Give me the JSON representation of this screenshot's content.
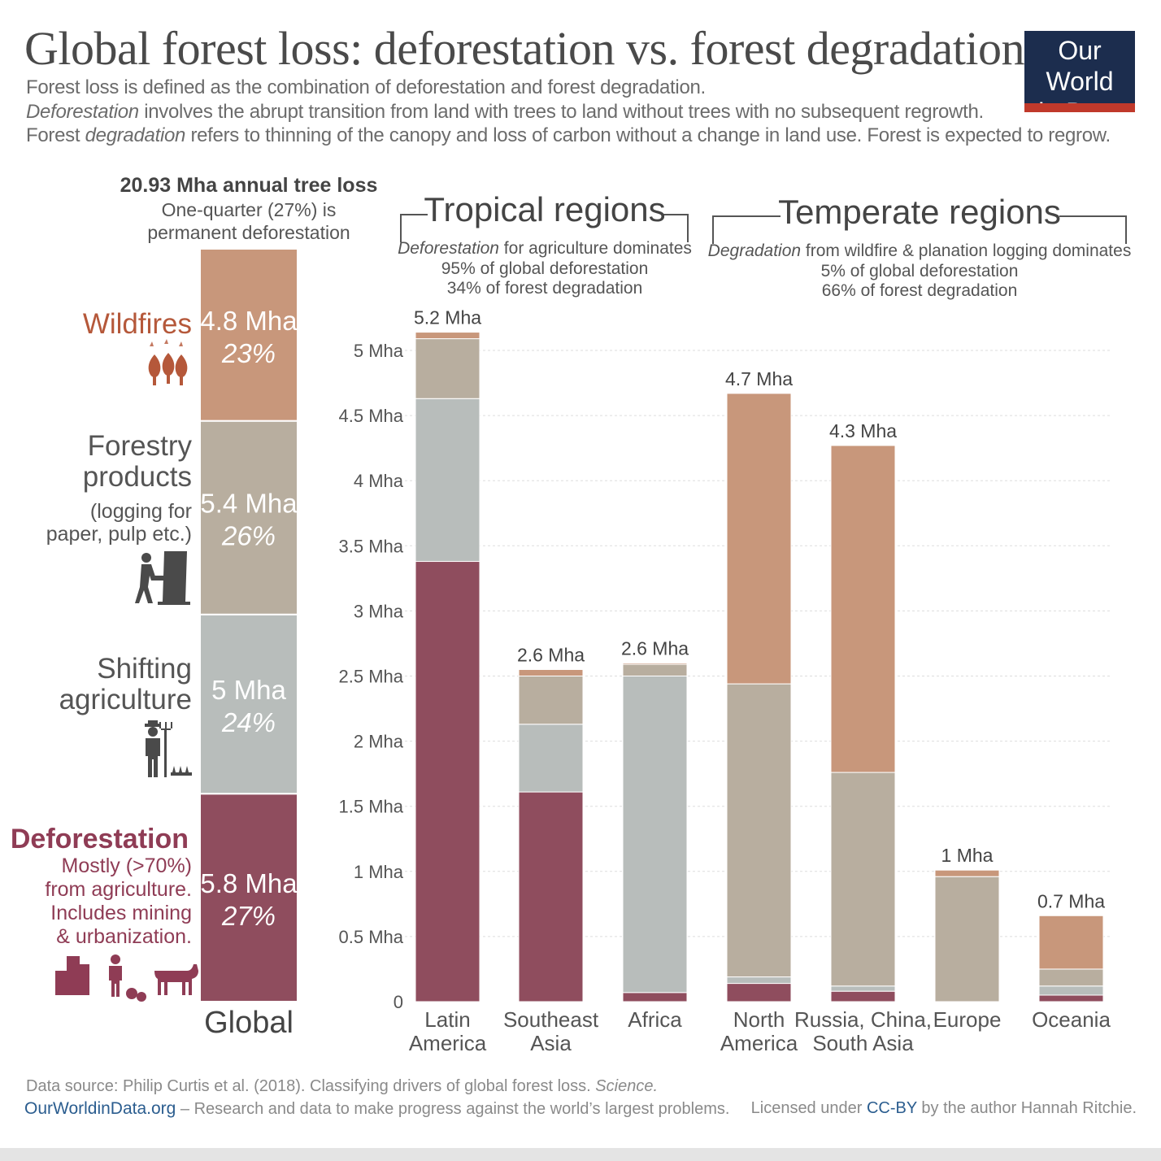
{
  "title": "Global forest loss: deforestation vs. forest degradation",
  "subtitle": {
    "line1": "Forest loss is defined as the combination of deforestation and forest degradation.",
    "line2_em": "Deforestation",
    "line2_rest": " involves the abrupt transition from land with trees to land without trees with no subsequent regrowth.",
    "line3_pre": "Forest ",
    "line3_em": "degradation",
    "line3_rest": " refers to thinning of the canopy and loss of carbon without  a change in land use. Forest is expected to regrow."
  },
  "logo": {
    "line1": "Our World",
    "line2": "in Data"
  },
  "colors": {
    "wildfires": "#c8977b",
    "forestry": "#b8ae9f",
    "shifting": "#b8bdbb",
    "deforestation": "#8f4d5e",
    "wildfire_text": "#b5583a",
    "deforestation_text": "#8f3c55",
    "label_gray": "#555555",
    "grid": "#dddddd"
  },
  "global_panel": {
    "heading_bold": "20.93 Mha annual tree loss",
    "heading_line2": "One-quarter (27%) is",
    "heading_line3": "permanent deforestation",
    "x_label": "Global",
    "segments": [
      {
        "key": "deforestation",
        "value": 5.8,
        "value_label": "5.8 Mha",
        "pct_label": "27%",
        "label_title": "Deforestation",
        "label_lines": [
          "Mostly (>70%)",
          "from agriculture.",
          "Includes mining",
          "& urbanization."
        ],
        "icon": "city-farmer-cow-icon"
      },
      {
        "key": "shifting",
        "value": 5.0,
        "value_label": "5 Mha",
        "pct_label": "24%",
        "label_title_lines": [
          "Shifting",
          "agriculture"
        ],
        "icon": "farmer-pitchfork-icon"
      },
      {
        "key": "forestry",
        "value": 5.4,
        "value_label": "5.4 Mha",
        "pct_label": "26%",
        "label_title_lines": [
          "Forestry",
          "products"
        ],
        "label_lines": [
          "(logging for",
          "paper, pulp etc.)"
        ],
        "icon": "lumberjack-chainsaw-icon"
      },
      {
        "key": "wildfires",
        "value": 4.8,
        "value_label": "4.8 Mha",
        "pct_label": "23%",
        "label_title": "Wildfires",
        "icon": "burning-trees-icon"
      }
    ]
  },
  "tropical_header": {
    "title": "Tropical regions",
    "line1_em": "Deforestation",
    "line1_rest": " for agriculture dominates",
    "line2": "95% of global deforestation",
    "line3": "34% of forest degradation"
  },
  "temperate_header": {
    "title": "Temperate regions",
    "line1_em": "Degradation",
    "line1_rest": " from wildfire & planation logging dominates",
    "line2": "5% of global deforestation",
    "line3": "66% of forest degradation"
  },
  "chart_data": {
    "type": "bar",
    "stacked": true,
    "categories": [
      [
        "Latin",
        "America"
      ],
      [
        "Southeast",
        "Asia"
      ],
      [
        "Africa"
      ],
      [
        "North",
        "America"
      ],
      [
        "Russia, China,",
        "South Asia"
      ],
      [
        "Europe"
      ],
      [
        "Oceania"
      ]
    ],
    "series": [
      {
        "key": "deforestation",
        "values": [
          3.38,
          1.61,
          0.07,
          0.14,
          0.08,
          0.0,
          0.05
        ]
      },
      {
        "key": "shifting",
        "values": [
          1.25,
          0.52,
          2.43,
          0.05,
          0.04,
          0.0,
          0.07
        ]
      },
      {
        "key": "forestry",
        "values": [
          0.46,
          0.37,
          0.09,
          2.25,
          1.64,
          0.96,
          0.13
        ]
      },
      {
        "key": "wildfires",
        "values": [
          0.05,
          0.05,
          0.01,
          2.23,
          2.51,
          0.05,
          0.41
        ]
      }
    ],
    "totals_labels": [
      "5.2 Mha",
      "2.6 Mha",
      "2.6 Mha",
      "4.7 Mha",
      "4.3 Mha",
      "1 Mha",
      "0.7 Mha"
    ],
    "yticks": [
      {
        "value": 0,
        "label": "0"
      },
      {
        "value": 0.5,
        "label": "0.5 Mha"
      },
      {
        "value": 1,
        "label": "1 Mha"
      },
      {
        "value": 1.5,
        "label": "1.5 Mha"
      },
      {
        "value": 2,
        "label": "2 Mha"
      },
      {
        "value": 2.5,
        "label": "2.5 Mha"
      },
      {
        "value": 3,
        "label": "3 Mha"
      },
      {
        "value": 3.5,
        "label": "3.5 Mha"
      },
      {
        "value": 4,
        "label": "4 Mha"
      },
      {
        "value": 4.5,
        "label": "4.5 Mha"
      },
      {
        "value": 5,
        "label": "5 Mha"
      }
    ],
    "ylim": [
      0,
      5.2
    ],
    "grid": true
  },
  "footer": {
    "source_pre": "Data source: Philip Curtis et al. (2018). Classifying drivers of global forest loss. ",
    "source_em": "Science.",
    "site": "OurWorldinData.org",
    "site_rest": " – Research and data to make progress against the world’s largest problems.",
    "license_pre": "Licensed under ",
    "license_link": "CC-BY",
    "license_rest": " by the author Hannah Ritchie."
  }
}
